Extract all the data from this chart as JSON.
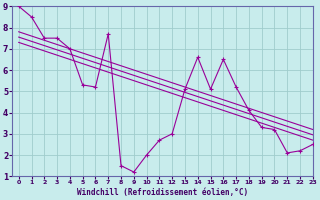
{
  "title": "",
  "xlabel": "Windchill (Refroidissement éolien,°C)",
  "ylabel": "",
  "xlim": [
    -0.5,
    23
  ],
  "ylim": [
    1,
    9
  ],
  "xticks": [
    0,
    1,
    2,
    3,
    4,
    5,
    6,
    7,
    8,
    9,
    10,
    11,
    12,
    13,
    14,
    15,
    16,
    17,
    18,
    19,
    20,
    21,
    22,
    23
  ],
  "yticks": [
    1,
    2,
    3,
    4,
    5,
    6,
    7,
    8,
    9
  ],
  "bg_color": "#c8ecec",
  "line_color": "#990099",
  "grid_color": "#a0cccc",
  "axis_color": "#6666aa",
  "label_color": "#440066",
  "data_x": [
    0,
    1,
    2,
    3,
    4,
    5,
    6,
    7,
    8,
    9,
    10,
    11,
    12,
    13,
    14,
    15,
    16,
    17,
    18,
    19,
    20,
    21,
    22,
    23
  ],
  "data_y": [
    9.0,
    8.5,
    7.5,
    7.5,
    7.0,
    5.3,
    5.2,
    7.7,
    1.5,
    1.2,
    2.0,
    2.7,
    3.0,
    5.1,
    6.6,
    5.1,
    6.5,
    5.2,
    4.1,
    3.3,
    3.2,
    2.1,
    2.2,
    2.5
  ],
  "trend_lines": [
    {
      "x": [
        0,
        23
      ],
      "y": [
        7.8,
        3.2
      ]
    },
    {
      "x": [
        0,
        23
      ],
      "y": [
        7.55,
        2.95
      ]
    },
    {
      "x": [
        0,
        23
      ],
      "y": [
        7.3,
        2.7
      ]
    }
  ],
  "figsize": [
    3.2,
    2.0
  ],
  "dpi": 100
}
